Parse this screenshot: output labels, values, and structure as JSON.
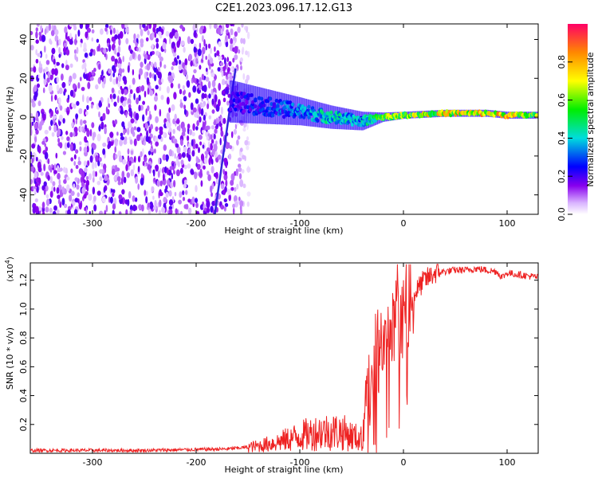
{
  "figure": {
    "title": "C2E1.2023.096.17.12.G13"
  },
  "chart_data": [
    {
      "type": "heatmap",
      "xlabel": "Height of straight line (km)",
      "ylabel": "Frequency (Hz)",
      "xlim": [
        -360,
        130
      ],
      "ylim": [
        -50,
        48
      ],
      "x_ticks": [
        -300,
        -200,
        -100,
        0,
        100
      ],
      "y_ticks": [
        -40,
        -20,
        0,
        20,
        40
      ],
      "colorbar": {
        "label": "Normalized spectral amplitude",
        "range": [
          0.0,
          1.0
        ],
        "ticks": [
          0.0,
          0.2,
          0.4,
          0.6,
          0.8
        ],
        "colormap": [
          "#ffffff",
          "#d9b3ff",
          "#8800ee",
          "#0000ff",
          "#00dddd",
          "#00ee00",
          "#ffff00",
          "#ff8800",
          "#ff0066"
        ]
      },
      "noise_region_x": [
        -360,
        -150
      ],
      "diagonal_streak": {
        "x": [
          -182,
          -162
        ],
        "y": [
          -50,
          25
        ]
      },
      "central_band": {
        "x": [
          -165,
          -100,
          -70,
          -40,
          -20,
          0,
          40,
          80,
          100,
          130
        ],
        "y": [
          8,
          3,
          0,
          -2,
          0,
          1,
          2,
          2,
          1,
          1
        ],
        "spread": [
          18,
          12,
          10,
          8,
          4,
          3,
          3,
          3,
          3,
          3
        ],
        "peak": [
          0.25,
          0.4,
          0.5,
          0.45,
          0.7,
          0.8,
          0.85,
          0.9,
          0.9,
          0.75
        ]
      }
    },
    {
      "type": "line",
      "xlabel": "Height of straight line (km)",
      "ylabel": "SNR (10 * v/v)",
      "y_multiplier": "(x10",
      "y_multiplier_exp": "4",
      "y_multiplier_close": ")",
      "xlim": [
        -360,
        130
      ],
      "ylim": [
        0,
        1.32
      ],
      "x_ticks": [
        -300,
        -200,
        -100,
        0,
        100
      ],
      "y_ticks": [
        0.2,
        0.4,
        0.6,
        0.8,
        1.0,
        1.2
      ],
      "series": [
        {
          "color": "#ee2222",
          "x": [
            -360,
            -250,
            -170,
            -140,
            -120,
            -100,
            -80,
            -60,
            -50,
            -40,
            -35,
            -30,
            -25,
            -20,
            -15,
            -10,
            -5,
            0,
            5,
            10,
            15,
            20,
            25,
            30,
            40,
            50,
            60,
            70,
            80,
            90,
            95,
            100,
            110,
            120,
            130
          ],
          "y": [
            0.02,
            0.02,
            0.03,
            0.05,
            0.08,
            0.12,
            0.15,
            0.15,
            0.12,
            0.1,
            0.3,
            0.5,
            0.6,
            0.7,
            0.75,
            0.8,
            0.85,
            0.95,
            1.0,
            1.1,
            1.15,
            1.2,
            1.22,
            1.25,
            1.26,
            1.27,
            1.27,
            1.28,
            1.27,
            1.26,
            1.22,
            1.25,
            1.24,
            1.23,
            1.22
          ]
        }
      ]
    }
  ]
}
